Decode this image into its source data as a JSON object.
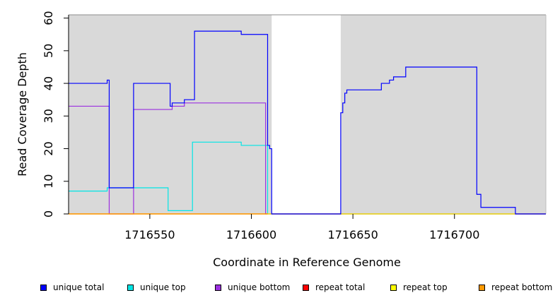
{
  "chart_data": {
    "type": "line",
    "title": "",
    "xlabel": "Coordinate in Reference Genome",
    "ylabel": "Read Coverage Depth",
    "xlim": [
      1716510,
      1716745
    ],
    "ylim": [
      0,
      61
    ],
    "x_ticks": [
      1716550,
      1716600,
      1716650,
      1716700
    ],
    "y_ticks": [
      0,
      10,
      20,
      30,
      40,
      50,
      60
    ],
    "background_color": "#d9d9d9",
    "shaded_ranges": [
      [
        1716510,
        1716610
      ],
      [
        1716644,
        1716745
      ]
    ],
    "unshaded_color": "#ffffff",
    "series": [
      {
        "name": "unique top",
        "color": "#00e5e5",
        "points": [
          [
            1716510,
            7
          ],
          [
            1716529,
            7
          ],
          [
            1716529,
            8
          ],
          [
            1716559,
            8
          ],
          [
            1716559,
            1
          ],
          [
            1716571,
            1
          ],
          [
            1716571,
            22
          ],
          [
            1716595,
            22
          ],
          [
            1716595,
            21
          ],
          [
            1716608,
            21
          ],
          [
            1716608,
            0
          ],
          [
            1716745,
            0
          ]
        ]
      },
      {
        "name": "unique bottom",
        "color": "#9b30e0",
        "points": [
          [
            1716510,
            33
          ],
          [
            1716530,
            33
          ],
          [
            1716530,
            0
          ],
          [
            1716542,
            0
          ],
          [
            1716542,
            32
          ],
          [
            1716561,
            32
          ],
          [
            1716561,
            33
          ],
          [
            1716567,
            33
          ],
          [
            1716567,
            34
          ],
          [
            1716607,
            34
          ],
          [
            1716607,
            0
          ],
          [
            1716745,
            0
          ]
        ]
      },
      {
        "name": "repeat total",
        "color": "#ff0000",
        "points": [
          [
            1716510,
            0
          ],
          [
            1716745,
            0
          ]
        ]
      },
      {
        "name": "repeat top",
        "color": "#ffff00",
        "points": [
          [
            1716510,
            0
          ],
          [
            1716745,
            0
          ]
        ]
      },
      {
        "name": "repeat bottom",
        "color": "#ff9900",
        "points": [
          [
            1716510,
            0
          ],
          [
            1716608,
            0
          ]
        ]
      },
      {
        "name": "unique total",
        "color": "#0000ff",
        "points": [
          [
            1716510,
            40
          ],
          [
            1716529,
            40
          ],
          [
            1716529,
            41
          ],
          [
            1716530,
            41
          ],
          [
            1716530,
            8
          ],
          [
            1716542,
            8
          ],
          [
            1716542,
            40
          ],
          [
            1716560,
            40
          ],
          [
            1716560,
            33
          ],
          [
            1716561,
            33
          ],
          [
            1716561,
            34
          ],
          [
            1716567,
            34
          ],
          [
            1716567,
            35
          ],
          [
            1716572,
            35
          ],
          [
            1716572,
            56
          ],
          [
            1716595,
            56
          ],
          [
            1716595,
            55
          ],
          [
            1716608,
            55
          ],
          [
            1716608,
            21
          ],
          [
            1716609,
            21
          ],
          [
            1716609,
            20
          ],
          [
            1716610,
            20
          ],
          [
            1716610,
            0
          ],
          [
            1716644,
            0
          ],
          [
            1716644,
            31
          ],
          [
            1716645,
            31
          ],
          [
            1716645,
            34
          ],
          [
            1716646,
            34
          ],
          [
            1716646,
            37
          ],
          [
            1716647,
            37
          ],
          [
            1716647,
            38
          ],
          [
            1716664,
            38
          ],
          [
            1716664,
            40
          ],
          [
            1716668,
            40
          ],
          [
            1716668,
            41
          ],
          [
            1716670,
            41
          ],
          [
            1716670,
            42
          ],
          [
            1716676,
            42
          ],
          [
            1716676,
            45
          ],
          [
            1716711,
            45
          ],
          [
            1716711,
            6
          ],
          [
            1716713,
            6
          ],
          [
            1716713,
            2
          ],
          [
            1716730,
            2
          ],
          [
            1716730,
            0
          ],
          [
            1716745,
            0
          ]
        ]
      }
    ],
    "legend": {
      "placement": "bottom",
      "entries": [
        {
          "label": "unique total",
          "color": "#0000ff"
        },
        {
          "label": "unique top",
          "color": "#00e5e5"
        },
        {
          "label": "unique bottom",
          "color": "#9b30e0"
        },
        {
          "label": "repeat total",
          "color": "#ff0000"
        },
        {
          "label": "repeat top",
          "color": "#ffff00"
        },
        {
          "label": "repeat bottom",
          "color": "#ff9900"
        }
      ]
    }
  }
}
